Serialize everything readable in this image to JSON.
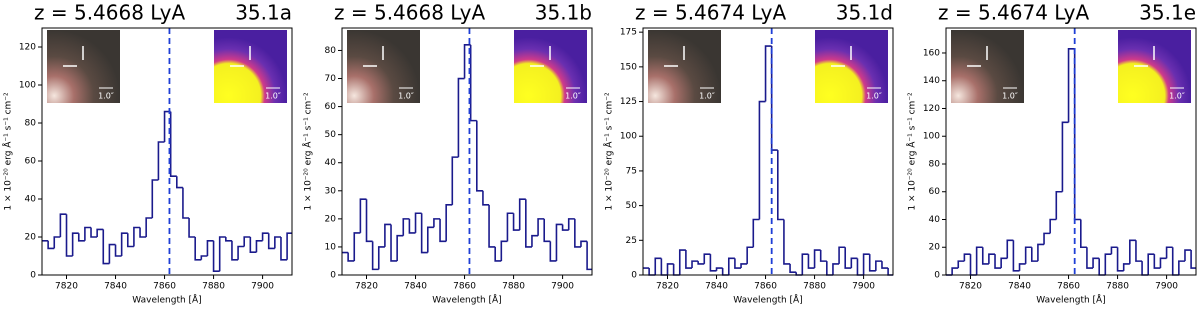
{
  "chart_data": [
    {
      "type": "step",
      "title": "z = 5.4668 LyA",
      "label": "35.1a",
      "x_label": "Wavelength [Å]",
      "y_label": "1 × 10⁻²⁰ erg Å⁻¹ s⁻¹ cm⁻²",
      "inset_scale_labels": [
        "1.0″",
        "1.0″"
      ],
      "marker_x": 7862,
      "color": "#1a1a8c",
      "marker_color": "#1f3fd6",
      "xlim": [
        7810,
        7912
      ],
      "xticks": [
        7820,
        7840,
        7860,
        7880,
        7900
      ],
      "ylim": [
        0,
        130
      ],
      "yticks": [
        0,
        20,
        40,
        60,
        80,
        100,
        120
      ],
      "x": [
        7811.25,
        7813.75,
        7816.25,
        7818.75,
        7821.25,
        7823.75,
        7826.25,
        7828.75,
        7831.25,
        7833.75,
        7836.25,
        7838.75,
        7841.25,
        7843.75,
        7846.25,
        7848.75,
        7851.25,
        7853.75,
        7856.25,
        7858.75,
        7861.25,
        7863.75,
        7866.25,
        7868.75,
        7871.25,
        7873.75,
        7876.25,
        7878.75,
        7881.25,
        7883.75,
        7886.25,
        7888.75,
        7891.25,
        7893.75,
        7896.25,
        7898.75,
        7901.25,
        7903.75,
        7906.25,
        7908.75,
        7911.25
      ],
      "values": [
        18,
        14,
        20,
        32,
        10,
        22,
        18,
        25,
        20,
        24,
        6,
        16,
        10,
        22,
        15,
        25,
        20,
        30,
        50,
        70,
        86,
        52,
        46,
        30,
        20,
        8,
        10,
        18,
        2,
        20,
        18,
        8,
        15,
        20,
        12,
        18,
        22,
        14,
        20,
        8,
        22
      ]
    },
    {
      "type": "step",
      "title": "z = 5.4668 LyA",
      "label": "35.1b",
      "x_label": "Wavelength [Å]",
      "y_label": "1 × 10⁻²⁰ erg Å⁻¹ s⁻¹ cm⁻²",
      "inset_scale_labels": [
        "1.0″",
        "1.0″"
      ],
      "marker_x": 7862,
      "color": "#1a1a8c",
      "marker_color": "#1f3fd6",
      "xlim": [
        7810,
        7912
      ],
      "xticks": [
        7820,
        7840,
        7860,
        7880,
        7900
      ],
      "ylim": [
        0,
        88
      ],
      "yticks": [
        0,
        10,
        20,
        30,
        40,
        50,
        60,
        70,
        80
      ],
      "x": [
        7811.25,
        7813.75,
        7816.25,
        7818.75,
        7821.25,
        7823.75,
        7826.25,
        7828.75,
        7831.25,
        7833.75,
        7836.25,
        7838.75,
        7841.25,
        7843.75,
        7846.25,
        7848.75,
        7851.25,
        7853.75,
        7856.25,
        7858.75,
        7861.25,
        7863.75,
        7866.25,
        7868.75,
        7871.25,
        7873.75,
        7876.25,
        7878.75,
        7881.25,
        7883.75,
        7886.25,
        7888.75,
        7891.25,
        7893.75,
        7896.25,
        7898.75,
        7901.25,
        7903.75,
        7906.25,
        7908.75,
        7911.25
      ],
      "values": [
        8,
        5,
        15,
        27,
        12,
        2,
        10,
        18,
        5,
        14,
        20,
        15,
        22,
        8,
        17,
        20,
        12,
        25,
        42,
        70,
        82,
        55,
        30,
        25,
        10,
        5,
        12,
        22,
        16,
        27,
        10,
        14,
        20,
        12,
        5,
        18,
        16,
        20,
        10,
        12,
        2
      ]
    },
    {
      "type": "step",
      "title": "z = 5.4674 LyA",
      "label": "35.1d",
      "x_label": "Wavelength [Å]",
      "y_label": "1 × 10⁻²⁰ erg Å⁻¹ s⁻¹ cm⁻²",
      "inset_scale_labels": [
        "1.0″",
        "1.0″"
      ],
      "marker_x": 7862.5,
      "color": "#1a1a8c",
      "marker_color": "#1f3fd6",
      "xlim": [
        7810,
        7912
      ],
      "xticks": [
        7820,
        7840,
        7860,
        7880,
        7900
      ],
      "ylim": [
        0,
        178
      ],
      "yticks": [
        0,
        25,
        50,
        75,
        100,
        125,
        150,
        175
      ],
      "x": [
        7811.25,
        7813.75,
        7816.25,
        7818.75,
        7821.25,
        7823.75,
        7826.25,
        7828.75,
        7831.25,
        7833.75,
        7836.25,
        7838.75,
        7841.25,
        7843.75,
        7846.25,
        7848.75,
        7851.25,
        7853.75,
        7856.25,
        7858.75,
        7861.25,
        7863.75,
        7866.25,
        7868.75,
        7871.25,
        7873.75,
        7876.25,
        7878.75,
        7881.25,
        7883.75,
        7886.25,
        7888.75,
        7891.25,
        7893.75,
        7896.25,
        7898.75,
        7901.25,
        7903.75,
        7906.25,
        7908.75,
        7911.25
      ],
      "values": [
        5,
        0,
        12,
        0,
        8,
        0,
        18,
        5,
        10,
        8,
        15,
        3,
        5,
        0,
        12,
        5,
        8,
        20,
        40,
        125,
        165,
        90,
        40,
        8,
        2,
        0,
        15,
        5,
        18,
        10,
        0,
        8,
        20,
        5,
        12,
        0,
        15,
        3,
        10,
        5,
        0
      ]
    },
    {
      "type": "step",
      "title": "z = 5.4674 LyA",
      "label": "35.1e",
      "x_label": "Wavelength [Å]",
      "y_label": "1 × 10⁻²⁰ erg Å⁻¹ s⁻¹ cm⁻²",
      "inset_scale_labels": [
        "1.0″",
        "1.0″"
      ],
      "marker_x": 7862.5,
      "color": "#1a1a8c",
      "marker_color": "#1f3fd6",
      "xlim": [
        7810,
        7912
      ],
      "xticks": [
        7820,
        7840,
        7860,
        7880,
        7900
      ],
      "ylim": [
        0,
        178
      ],
      "yticks": [
        0,
        20,
        40,
        60,
        80,
        100,
        120,
        140,
        160
      ],
      "x": [
        7811.25,
        7813.75,
        7816.25,
        7818.75,
        7821.25,
        7823.75,
        7826.25,
        7828.75,
        7831.25,
        7833.75,
        7836.25,
        7838.75,
        7841.25,
        7843.75,
        7846.25,
        7848.75,
        7851.25,
        7853.75,
        7856.25,
        7858.75,
        7861.25,
        7863.75,
        7866.25,
        7868.75,
        7871.25,
        7873.75,
        7876.25,
        7878.75,
        7881.25,
        7883.75,
        7886.25,
        7888.75,
        7891.25,
        7893.75,
        7896.25,
        7898.75,
        7901.25,
        7903.75,
        7906.25,
        7908.75,
        7911.25
      ],
      "values": [
        0,
        5,
        10,
        15,
        0,
        20,
        8,
        15,
        5,
        12,
        25,
        3,
        8,
        20,
        10,
        22,
        30,
        40,
        60,
        110,
        163,
        40,
        20,
        5,
        12,
        0,
        15,
        20,
        3,
        8,
        25,
        10,
        0,
        15,
        5,
        12,
        20,
        0,
        10,
        18,
        5
      ]
    }
  ]
}
